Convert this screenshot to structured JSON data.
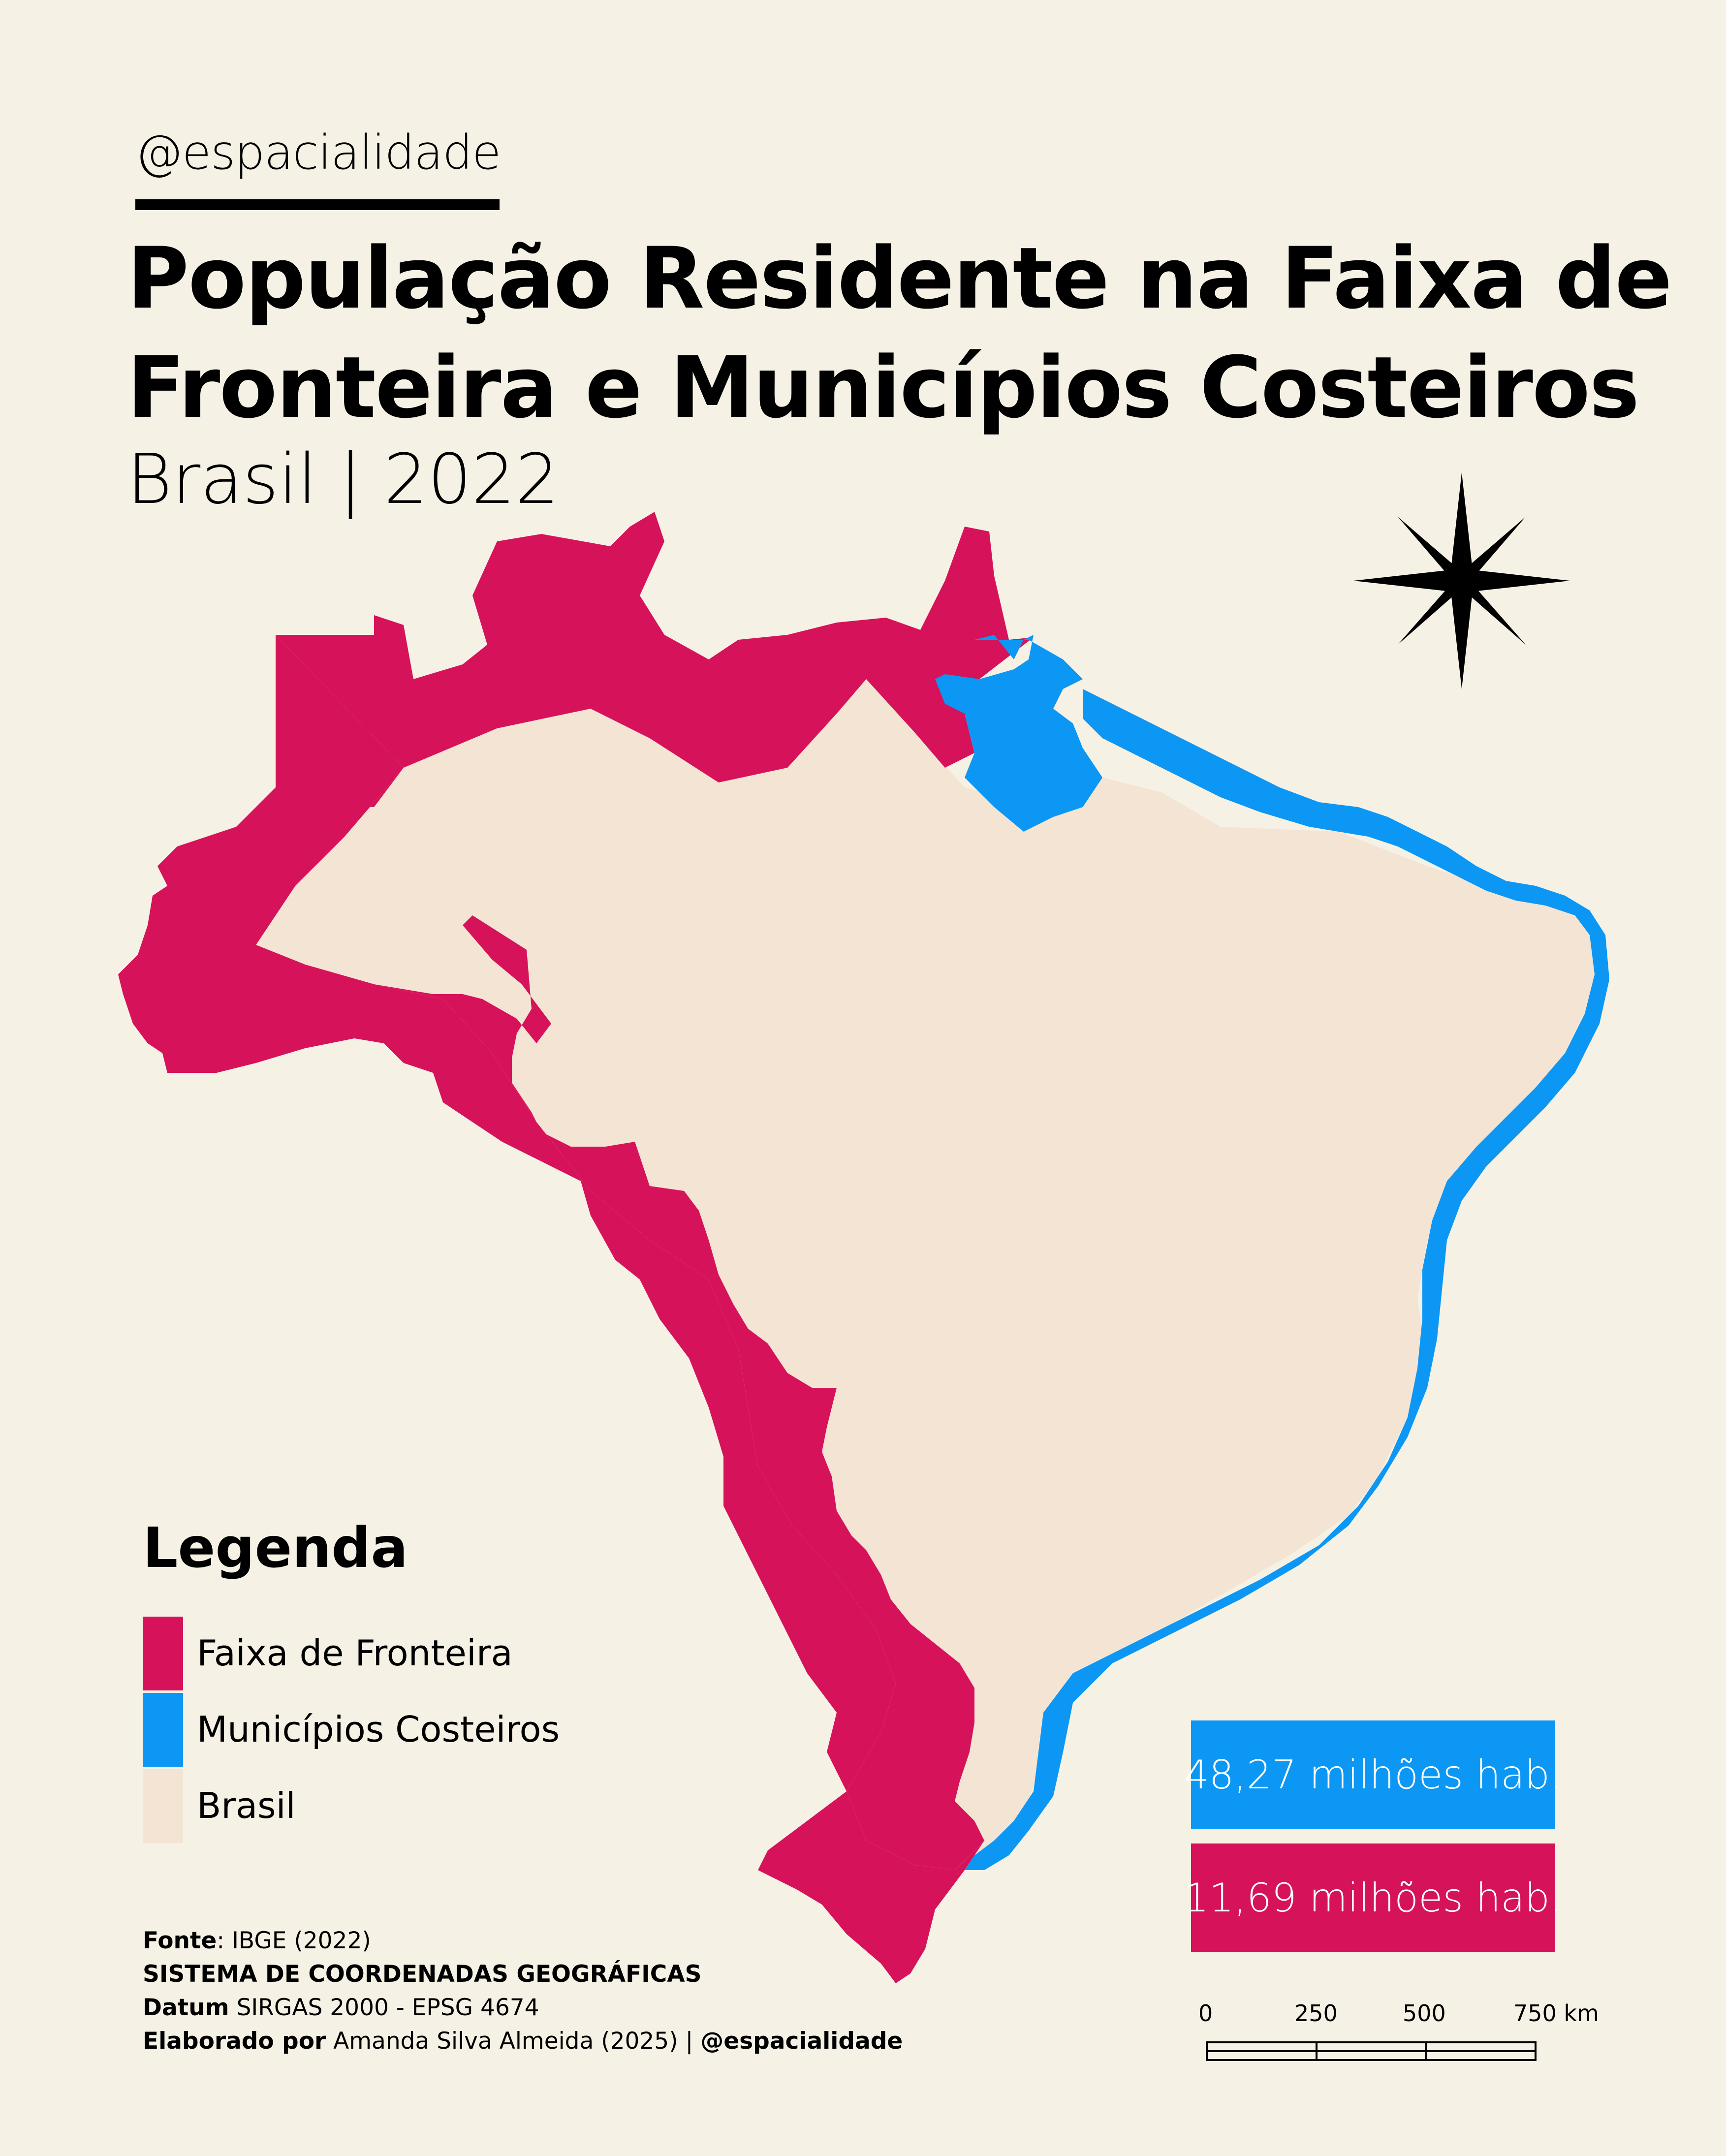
{
  "header": {
    "handle": "@espacialidade",
    "title_line1": "População Residente na Faixa de",
    "title_line2": "Fronteira e Municípios Costeiros",
    "subtitle": "Brasil | 2022"
  },
  "map": {
    "colors": {
      "background": "#f5f1e5",
      "brasil": "#f4e4d4",
      "faixa_de_fronteira": "#d6135a",
      "municipios_costeiros": "#0c97f5"
    },
    "compass_icon": "north-arrow-compass-star-icon"
  },
  "legend": {
    "title": "Legenda",
    "items": [
      {
        "label": "Faixa de Fronteira",
        "color": "#d6135a"
      },
      {
        "label": "Municípios Costeiros",
        "color": "#0c97f5"
      },
      {
        "label": "Brasil",
        "color": "#f4e4d4"
      }
    ]
  },
  "stats": {
    "coastal": "48,27 milhões hab.",
    "border": "11,69 milhões hab."
  },
  "credits": {
    "source_label": "Fonte",
    "source_value": ": IBGE (2022)",
    "system": "SISTEMA DE COORDENADAS GEOGRÁFICAS",
    "datum_label": "Datum",
    "datum_value": " SIRGAS 2000 - EPSG 4674",
    "author_label": "Elaborado por",
    "author_value": " Amanda Silva Almeida (2025) | ",
    "author_handle": "@espacialidade"
  },
  "scale_bar": {
    "labels": [
      "0",
      "250",
      "500",
      "750 km"
    ]
  }
}
